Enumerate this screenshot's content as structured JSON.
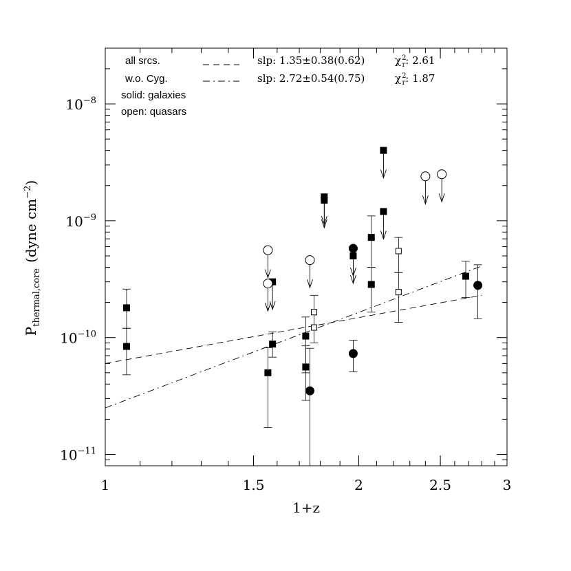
{
  "chart_data": {
    "type": "scatter",
    "xlabel": "1+z",
    "ylabel_main": "P",
    "ylabel_sub": "thermal,core",
    "ylabel_units": "(dyne cm",
    "ylabel_exp": "−2",
    "ylabel_close": ")",
    "x_scale": "log",
    "y_scale": "log",
    "xlim": [
      1.0,
      3.0
    ],
    "ylim": [
      8e-12,
      3e-08
    ],
    "x_ticks": [
      {
        "value": 1,
        "label": "1"
      },
      {
        "value": 1.5,
        "label": "1.5"
      },
      {
        "value": 2,
        "label": "2"
      },
      {
        "value": 2.5,
        "label": "2.5"
      },
      {
        "value": 3,
        "label": "3"
      }
    ],
    "y_ticks": [
      {
        "value": 1e-08,
        "base": "10",
        "exp": "−8"
      },
      {
        "value": 1e-09,
        "base": "10",
        "exp": "−9"
      },
      {
        "value": 1e-10,
        "base": "10",
        "exp": "−10"
      },
      {
        "value": 1e-11,
        "base": "10",
        "exp": "−11"
      }
    ],
    "legend_text": {
      "all": "all srcs.",
      "wo": "w.o. Cyg.",
      "solid": "solid: galaxies",
      "open": "open: quasars"
    },
    "fits": [
      {
        "label": "slp: 1.35±0.38(0.62)",
        "chi_label": "χ",
        "chi_sup": "2",
        "chi_sub": "r",
        "chi_value": ": 2.61",
        "style": "dashed",
        "x": [
          1.0,
          2.8
        ],
        "y": [
          6e-11,
          2.3e-10
        ]
      },
      {
        "label": "slp: 2.72±0.54(0.75)",
        "chi_label": "χ",
        "chi_sup": "2",
        "chi_sub": "r",
        "chi_value": ": 1.87",
        "style": "dashdot",
        "x": [
          1.0,
          2.8
        ],
        "y": [
          2.5e-11,
          4.1e-10
        ]
      }
    ],
    "points": [
      {
        "x": 1.06,
        "y": 1.8e-10,
        "marker": "square",
        "filled": true,
        "yerr": [
          1.2e-10,
          2.6e-10
        ]
      },
      {
        "x": 1.06,
        "y": 8.4e-11,
        "marker": "square",
        "filled": true,
        "yerr": [
          4.8e-11,
          1.2e-10
        ]
      },
      {
        "x": 1.56,
        "y": 5e-11,
        "marker": "square",
        "filled": true,
        "yerr": [
          1.7e-11,
          8.2e-11
        ]
      },
      {
        "x": 1.58,
        "y": 8.8e-11,
        "marker": "square",
        "filled": true,
        "yerr": [
          6.8e-11,
          1.12e-10
        ]
      },
      {
        "x": 1.58,
        "y": 3e-10,
        "marker": "square",
        "filled": true,
        "upper_limit": true
      },
      {
        "x": 1.56,
        "y": 5.6e-10,
        "marker": "circle",
        "filled": false,
        "upper_limit": true
      },
      {
        "x": 1.56,
        "y": 2.9e-10,
        "marker": "circle",
        "filled": false,
        "upper_limit": true
      },
      {
        "x": 1.73,
        "y": 1.03e-10,
        "marker": "square",
        "filled": true,
        "yerr": [
          5e-11,
          1.5e-10
        ]
      },
      {
        "x": 1.73,
        "y": 5.6e-11,
        "marker": "square",
        "filled": true,
        "yerr": [
          2.9e-11,
          8.5e-11
        ]
      },
      {
        "x": 1.75,
        "y": 3.5e-11,
        "marker": "circle",
        "filled": true,
        "yerr": [
          8e-12,
          8.1e-11
        ]
      },
      {
        "x": 1.75,
        "y": 4.6e-10,
        "marker": "circle",
        "filled": false,
        "upper_limit": true
      },
      {
        "x": 1.77,
        "y": 1.65e-10,
        "marker": "square",
        "filled": false,
        "yerr": [
          9e-11,
          2.3e-10
        ]
      },
      {
        "x": 1.77,
        "y": 1.22e-10,
        "marker": "square",
        "filled": false
      },
      {
        "x": 1.82,
        "y": 1.6e-09,
        "marker": "square",
        "filled": true,
        "upper_limit": true
      },
      {
        "x": 1.82,
        "y": 1.5e-09,
        "marker": "square",
        "filled": true,
        "upper_limit": true
      },
      {
        "x": 1.97,
        "y": 5.8e-10,
        "marker": "circle",
        "filled": true,
        "upper_limit": true
      },
      {
        "x": 1.97,
        "y": 5e-10,
        "marker": "square",
        "filled": true,
        "upper_limit": true
      },
      {
        "x": 1.97,
        "y": 7.3e-11,
        "marker": "circle",
        "filled": true,
        "yerr": [
          5.1e-11,
          9.5e-11
        ]
      },
      {
        "x": 2.07,
        "y": 7.2e-10,
        "marker": "square",
        "filled": true,
        "yerr": [
          4e-10,
          1.1e-09
        ]
      },
      {
        "x": 2.07,
        "y": 2.85e-10,
        "marker": "square",
        "filled": true,
        "yerr": [
          1.65e-10,
          4e-10
        ]
      },
      {
        "x": 2.14,
        "y": 4e-09,
        "marker": "square",
        "filled": true,
        "upper_limit": true
      },
      {
        "x": 2.14,
        "y": 1.2e-09,
        "marker": "square",
        "filled": true,
        "upper_limit": true
      },
      {
        "x": 2.23,
        "y": 5.5e-10,
        "marker": "square",
        "filled": false,
        "yerr": [
          3.6e-10,
          7.2e-10
        ]
      },
      {
        "x": 2.23,
        "y": 2.45e-10,
        "marker": "square",
        "filled": false,
        "yerr": [
          1.35e-10,
          3.6e-10
        ]
      },
      {
        "x": 2.4,
        "y": 2.4e-09,
        "marker": "circle",
        "filled": false,
        "upper_limit": true
      },
      {
        "x": 2.51,
        "y": 2.5e-09,
        "marker": "circle",
        "filled": false,
        "upper_limit": true
      },
      {
        "x": 2.68,
        "y": 3.35e-10,
        "marker": "square",
        "filled": true,
        "yerr": [
          2.2e-10,
          4.5e-10
        ]
      },
      {
        "x": 2.77,
        "y": 2.8e-10,
        "marker": "circle",
        "filled": true,
        "yerr": [
          1.45e-10,
          4.2e-10
        ]
      }
    ]
  }
}
